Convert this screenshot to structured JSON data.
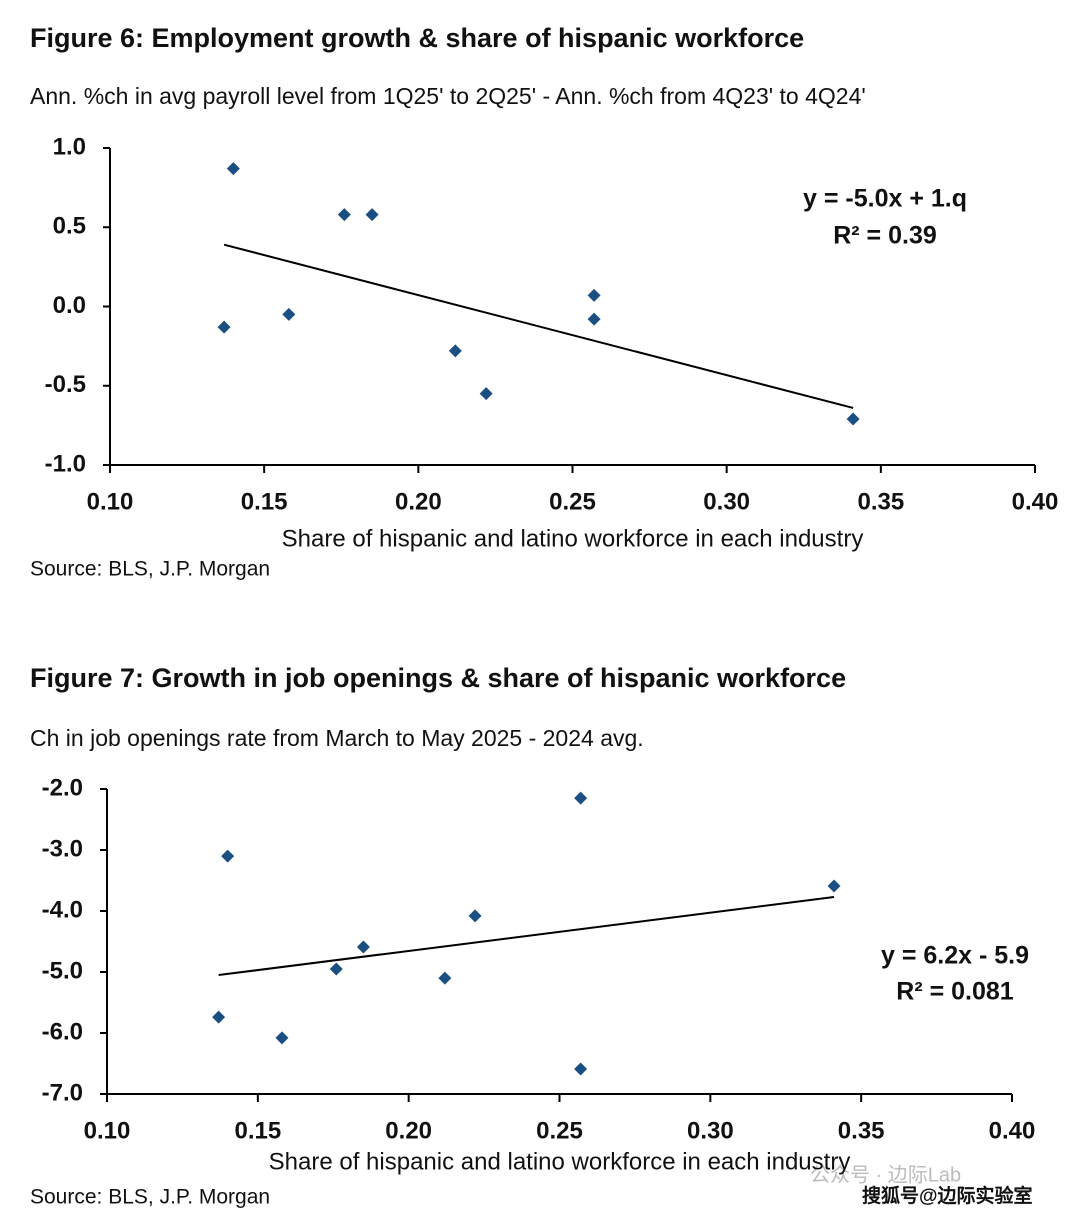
{
  "chart_data": [
    {
      "type": "scatter",
      "title": "Figure 6: Employment growth & share of hispanic workforce",
      "subtitle": "Ann. %ch in avg payroll level from 1Q25' to 2Q25' - Ann. %ch from 4Q23' to 4Q24'",
      "x_label": "Share of hispanic and latino workforce in each industry",
      "source": "Source: BLS, J.P. Morgan",
      "color": "#1b4f82",
      "x": [
        0.14,
        0.176,
        0.185,
        0.257,
        0.257,
        0.137,
        0.158,
        0.212,
        0.222,
        0.341
      ],
      "values": [
        0.87,
        0.58,
        0.58,
        0.07,
        -0.08,
        -0.13,
        -0.05,
        -0.28,
        -0.55,
        -0.71
      ],
      "trendline": {
        "x": [
          0.137,
          0.341
        ],
        "values": [
          0.39,
          -0.64
        ]
      },
      "annotations": [
        "y = -5.0x + 1.q",
        "R² = 0.39"
      ],
      "xlim": [
        0.1,
        0.4
      ],
      "xticks": [
        {
          "value": 0.1,
          "label": "0.10"
        },
        {
          "value": 0.15,
          "label": "0.15"
        },
        {
          "value": 0.2,
          "label": "0.20"
        },
        {
          "value": 0.25,
          "label": "0.25"
        },
        {
          "value": 0.3,
          "label": "0.30"
        },
        {
          "value": 0.35,
          "label": "0.35"
        },
        {
          "value": 0.4,
          "label": "0.40"
        }
      ],
      "ylim": [
        -1,
        1
      ],
      "yticks": [
        {
          "value": 1,
          "label": "1.0"
        },
        {
          "value": 0.5,
          "label": "0.5"
        },
        {
          "value": 0,
          "label": "0.0"
        },
        {
          "value": -0.5,
          "label": "-0.5"
        },
        {
          "value": -1,
          "label": "-1.0"
        }
      ],
      "grid": false
    },
    {
      "type": "scatter",
      "title": "Figure 7: Growth in job openings & share of hispanic workforce",
      "subtitle": "Ch in job openings rate from March to May 2025 - 2024 avg.",
      "x_label": "Share of hispanic and latino workforce in each industry",
      "source": "Source: BLS, J.P. Morgan",
      "color": "#1b4f82",
      "x": [
        0.257,
        0.14,
        0.341,
        0.222,
        0.185,
        0.176,
        0.212,
        0.137,
        0.158,
        0.257
      ],
      "values": [
        -2.15,
        -3.1,
        -3.59,
        -4.08,
        -4.59,
        -4.95,
        -5.1,
        -5.74,
        -6.08,
        -6.59
      ],
      "trendline": {
        "x": [
          0.137,
          0.341
        ],
        "values": [
          -5.05,
          -3.77
        ]
      },
      "annotations": [
        "y = 6.2x - 5.9",
        "R² = 0.081"
      ],
      "xlim": [
        0.1,
        0.4
      ],
      "xticks": [
        {
          "value": 0.1,
          "label": "0.10"
        },
        {
          "value": 0.15,
          "label": "0.15"
        },
        {
          "value": 0.2,
          "label": "0.20"
        },
        {
          "value": 0.25,
          "label": "0.25"
        },
        {
          "value": 0.3,
          "label": "0.30"
        },
        {
          "value": 0.35,
          "label": "0.35"
        },
        {
          "value": 0.4,
          "label": "0.40"
        }
      ],
      "ylim": [
        -7,
        -2
      ],
      "yticks": [
        {
          "value": -2,
          "label": "-2.0"
        },
        {
          "value": -3,
          "label": "-3.0"
        },
        {
          "value": -4,
          "label": "-4.0"
        },
        {
          "value": -5,
          "label": "-5.0"
        },
        {
          "value": -6,
          "label": "-6.0"
        },
        {
          "value": -7,
          "label": "-7.0"
        }
      ],
      "grid": false
    }
  ],
  "watermark": [
    "公众号 · 边际Lab",
    "搜狐号@边际实验室"
  ]
}
